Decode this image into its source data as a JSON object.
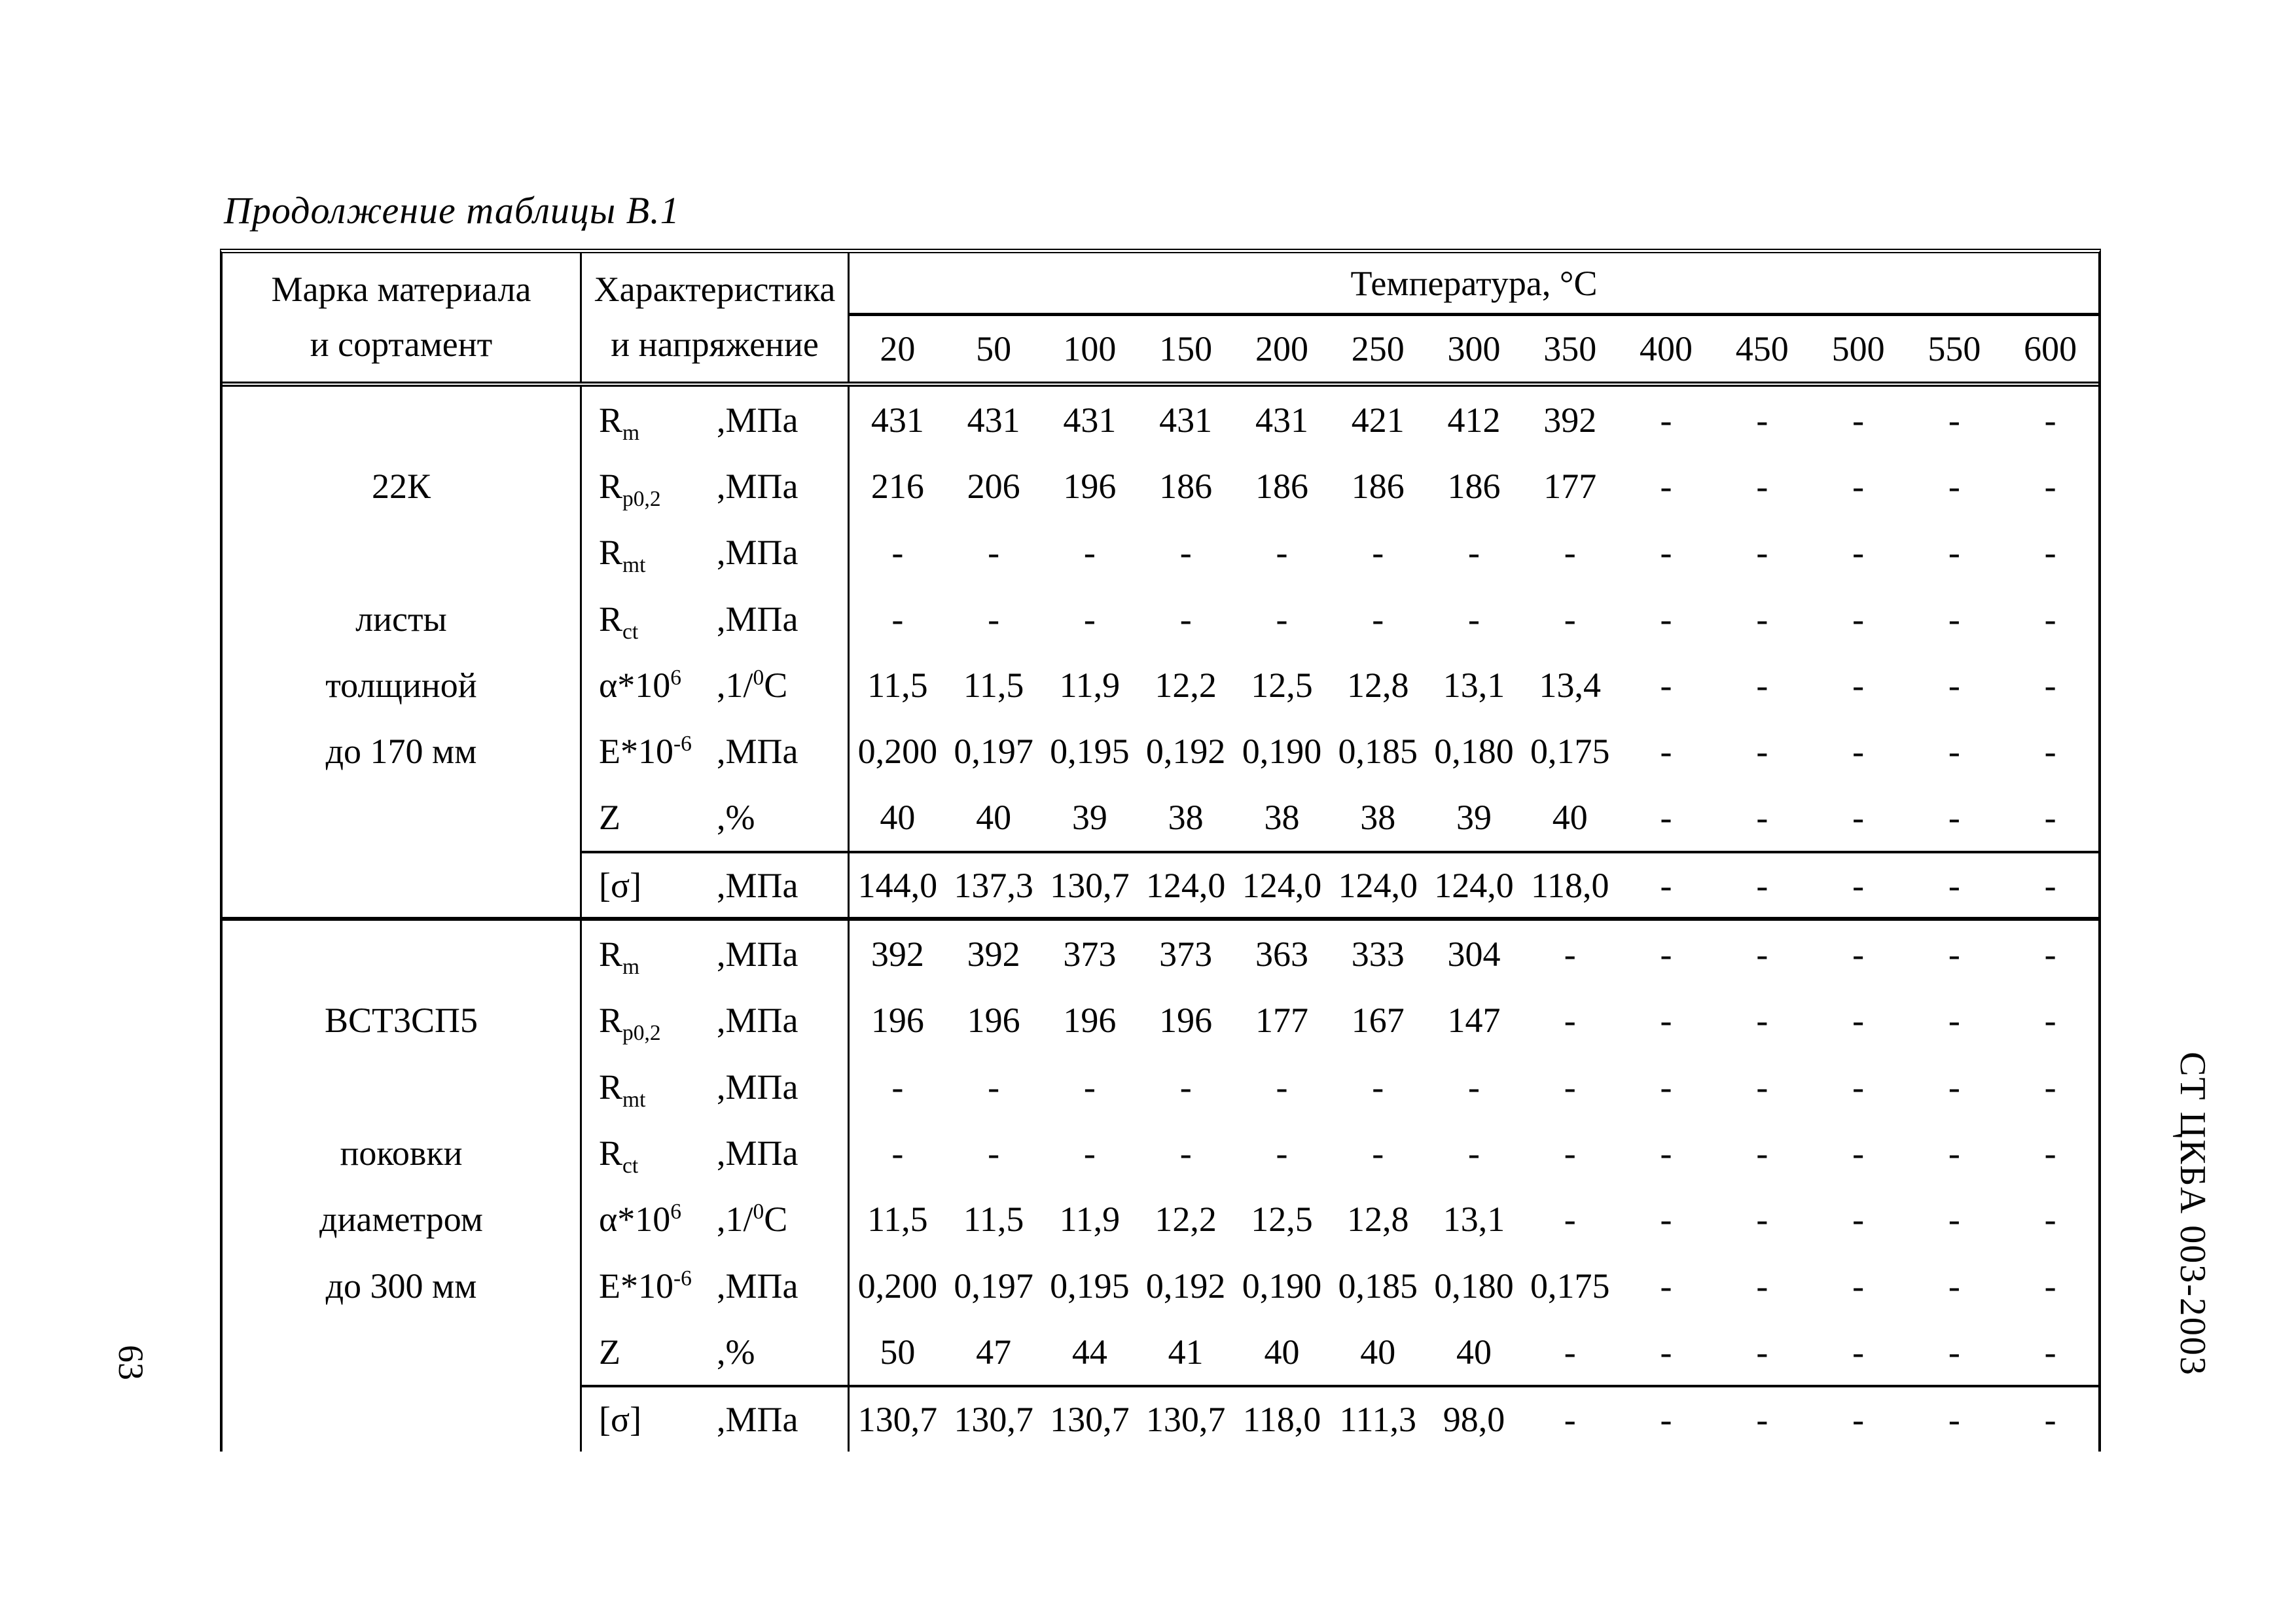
{
  "page": {
    "title": "Продолжение таблицы В.1",
    "page_number": "63",
    "side_label": "СТ ЦКБА 003-2003"
  },
  "table": {
    "col1_header": {
      "line1": "Марка материала",
      "line2": "и сортамент"
    },
    "col2_header": {
      "line1": "Характеристика",
      "line2": "и напряжение"
    },
    "temperature_header": "Температура, °С",
    "temperatures": [
      "20",
      "50",
      "100",
      "150",
      "200",
      "250",
      "300",
      "350",
      "400",
      "450",
      "500",
      "550",
      "600"
    ],
    "blocks": [
      {
        "material_lines": [
          "",
          "22К",
          "",
          "листы",
          "толщиной",
          "до 170 мм",
          "",
          ""
        ],
        "rows": [
          {
            "symbol": {
              "base": "R",
              "sub": "m"
            },
            "unit": {
              "pre": ",МПа"
            },
            "values": [
              "431",
              "431",
              "431",
              "431",
              "431",
              "421",
              "412",
              "392",
              "-",
              "-",
              "-",
              "-",
              "-"
            ]
          },
          {
            "symbol": {
              "base": "R",
              "sub": "p0,2"
            },
            "unit": {
              "pre": ",МПа"
            },
            "values": [
              "216",
              "206",
              "196",
              "186",
              "186",
              "186",
              "186",
              "177",
              "-",
              "-",
              "-",
              "-",
              "-"
            ]
          },
          {
            "symbol": {
              "base": "R",
              "sub": "mt"
            },
            "unit": {
              "pre": ",МПа"
            },
            "values": [
              "-",
              "-",
              "-",
              "-",
              "-",
              "-",
              "-",
              "-",
              "-",
              "-",
              "-",
              "-",
              "-"
            ]
          },
          {
            "symbol": {
              "base": "R",
              "sub": "ct"
            },
            "unit": {
              "pre": ",МПа"
            },
            "values": [
              "-",
              "-",
              "-",
              "-",
              "-",
              "-",
              "-",
              "-",
              "-",
              "-",
              "-",
              "-",
              "-"
            ]
          },
          {
            "symbol": {
              "base": "α*10",
              "sup": "6"
            },
            "unit": {
              "pre": ",1/",
              "sup": "0",
              "post": "С"
            },
            "values": [
              "11,5",
              "11,5",
              "11,9",
              "12,2",
              "12,5",
              "12,8",
              "13,1",
              "13,4",
              "-",
              "-",
              "-",
              "-",
              "-"
            ]
          },
          {
            "symbol": {
              "base": "Е*10",
              "sup": "-6"
            },
            "unit": {
              "pre": ",МПа"
            },
            "values": [
              "0,200",
              "0,197",
              "0,195",
              "0,192",
              "0,190",
              "0,185",
              "0,180",
              "0,175",
              "-",
              "-",
              "-",
              "-",
              "-"
            ]
          },
          {
            "symbol": {
              "base": "Z"
            },
            "unit": {
              "pre": ",%"
            },
            "values": [
              "40",
              "40",
              "39",
              "38",
              "38",
              "38",
              "39",
              "40",
              "-",
              "-",
              "-",
              "-",
              "-"
            ]
          },
          {
            "symbol": {
              "base": "[σ]"
            },
            "unit": {
              "pre": ",МПа"
            },
            "values": [
              "144,0",
              "137,3",
              "130,7",
              "124,0",
              "124,0",
              "124,0",
              "124,0",
              "118,0",
              "-",
              "-",
              "-",
              "-",
              "-"
            ]
          }
        ]
      },
      {
        "material_lines": [
          "",
          "ВСТ3СП5",
          "",
          "поковки",
          "диаметром",
          "до 300 мм",
          "",
          ""
        ],
        "rows": [
          {
            "symbol": {
              "base": "R",
              "sub": "m"
            },
            "unit": {
              "pre": ",МПа"
            },
            "values": [
              "392",
              "392",
              "373",
              "373",
              "363",
              "333",
              "304",
              "-",
              "-",
              "-",
              "-",
              "-",
              "-"
            ]
          },
          {
            "symbol": {
              "base": "R",
              "sub": "p0,2"
            },
            "unit": {
              "pre": ",МПа"
            },
            "values": [
              "196",
              "196",
              "196",
              "196",
              "177",
              "167",
              "147",
              "-",
              "-",
              "-",
              "-",
              "-",
              "-"
            ]
          },
          {
            "symbol": {
              "base": "R",
              "sub": "mt"
            },
            "unit": {
              "pre": ",МПа"
            },
            "values": [
              "-",
              "-",
              "-",
              "-",
              "-",
              "-",
              "-",
              "-",
              "-",
              "-",
              "-",
              "-",
              "-"
            ]
          },
          {
            "symbol": {
              "base": "R",
              "sub": "ct"
            },
            "unit": {
              "pre": ",МПа"
            },
            "values": [
              "-",
              "-",
              "-",
              "-",
              "-",
              "-",
              "-",
              "-",
              "-",
              "-",
              "-",
              "-",
              "-"
            ]
          },
          {
            "symbol": {
              "base": "α*10",
              "sup": "6"
            },
            "unit": {
              "pre": ",1/",
              "sup": "0",
              "post": "С"
            },
            "values": [
              "11,5",
              "11,5",
              "11,9",
              "12,2",
              "12,5",
              "12,8",
              "13,1",
              "-",
              "-",
              "-",
              "-",
              "-",
              "-"
            ]
          },
          {
            "symbol": {
              "base": "Е*10",
              "sup": "-6"
            },
            "unit": {
              "pre": ",МПа"
            },
            "values": [
              "0,200",
              "0,197",
              "0,195",
              "0,192",
              "0,190",
              "0,185",
              "0,180",
              "0,175",
              "-",
              "-",
              "-",
              "-",
              "-"
            ]
          },
          {
            "symbol": {
              "base": "Z"
            },
            "unit": {
              "pre": ",%"
            },
            "values": [
              "50",
              "47",
              "44",
              "41",
              "40",
              "40",
              "40",
              "-",
              "-",
              "-",
              "-",
              "-",
              "-"
            ]
          },
          {
            "symbol": {
              "base": "[σ]"
            },
            "unit": {
              "pre": ",МПа"
            },
            "values": [
              "130,7",
              "130,7",
              "130,7",
              "130,7",
              "118,0",
              "111,3",
              "98,0",
              "-",
              "-",
              "-",
              "-",
              "-",
              "-"
            ]
          }
        ]
      }
    ]
  }
}
